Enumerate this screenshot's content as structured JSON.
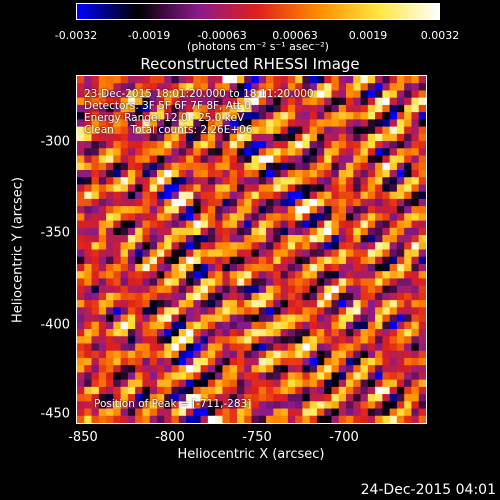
{
  "colorbar": {
    "tick_labels": [
      "-0.0032",
      "-0.0019",
      "-0.00063",
      "0.00063",
      "0.0019",
      "0.0032"
    ],
    "tick_values": [
      -0.0032,
      -0.0019,
      -0.00063,
      0.00063,
      0.0019,
      0.0032
    ],
    "units": "(photons cm⁻² s⁻¹ asec⁻²)",
    "colormap": [
      "#0000ff",
      "#000000",
      "#8a1a8a",
      "#e0201a",
      "#ff8c00",
      "#ffe640",
      "#ffffff"
    ]
  },
  "chart_data": {
    "type": "heatmap",
    "title": "Reconstructed RHESSI Image",
    "xlabel": "Heliocentric X (arcsec)",
    "ylabel": "Heliocentric Y (arcsec)",
    "xlim": [
      -860,
      -659
    ],
    "ylim": [
      -455,
      -256
    ],
    "xticks": [
      -850,
      -800,
      -750,
      -700
    ],
    "yticks": [
      -300,
      -350,
      -400,
      -450
    ],
    "value_range": [
      -0.0032,
      0.0032
    ],
    "peak": [
      -711,
      -283
    ],
    "annotations": [
      "23-Dec-2015 18:01:20.000 to 18:11:20.000",
      "Detectors: 3F 5F 6F 7F 8F, Att 0",
      "Energy Range: 12.0 - 25.0 keV",
      "Clean     Total counts: 2.26E+06"
    ],
    "peak_label": "Position of Peak = [-711,-283]"
  },
  "footer": {
    "timestamp": "24-Dec-2015 04:01"
  }
}
